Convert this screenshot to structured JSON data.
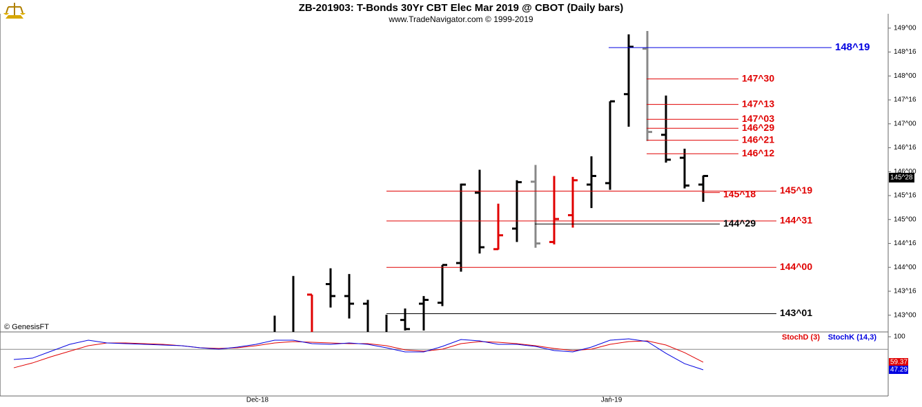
{
  "header": {
    "title": "ZB-201903:  T-Bonds 30Yr CBT Elec Mar 2019 @ CBOT  (Daily bars)",
    "subtitle": "www.TradeNavigator.com © 1999-2019"
  },
  "chart_data": [
    {
      "type": "ohlc",
      "categories": [
        null,
        null,
        null,
        null,
        null,
        null,
        null,
        null,
        null,
        null,
        null,
        null,
        null,
        "Dec-18",
        null,
        null,
        null,
        null,
        null,
        null,
        null,
        null,
        null,
        null,
        null,
        null,
        null,
        null,
        null,
        null,
        null,
        null,
        "Jan-19",
        null,
        null,
        null,
        null,
        null
      ],
      "open": [
        null,
        null,
        null,
        null,
        null,
        null,
        null,
        null,
        null,
        null,
        null,
        null,
        null,
        null,
        null,
        null,
        143.43,
        143.65,
        143.4,
        143.24,
        null,
        142.9,
        143.24,
        143.26,
        144.09,
        145.56,
        144.38,
        144.81,
        145.79,
        144.53,
        145.09,
        145.73,
        145.76,
        147.62,
        148.57,
        146.77,
        146.29,
        145.73
      ],
      "high": [
        null,
        null,
        null,
        null,
        null,
        null,
        null,
        null,
        null,
        null,
        null,
        null,
        null,
        null,
        142.99,
        143.82,
        143.43,
        143.98,
        143.86,
        143.32,
        143.01,
        143.14,
        143.4,
        144.05,
        145.75,
        146.04,
        145.33,
        145.82,
        146.14,
        145.91,
        145.89,
        146.32,
        147.47,
        148.87,
        148.94,
        147.59,
        146.48,
        145.92
      ],
      "low": [
        null,
        null,
        null,
        null,
        null,
        null,
        null,
        null,
        null,
        null,
        null,
        null,
        null,
        null,
        142.6,
        142.6,
        142.6,
        143.16,
        142.93,
        142.6,
        142.6,
        142.68,
        142.68,
        143.19,
        143.91,
        144.29,
        144.37,
        144.53,
        144.41,
        144.48,
        144.83,
        145.24,
        145.62,
        146.94,
        146.64,
        146.19,
        145.65,
        145.37
      ],
      "close": [
        null,
        null,
        null,
        null,
        null,
        null,
        null,
        null,
        null,
        null,
        null,
        null,
        null,
        null,
        null,
        null,
        null,
        143.4,
        143.24,
        null,
        null,
        142.71,
        143.32,
        144.05,
        145.73,
        144.42,
        144.67,
        145.78,
        144.5,
        145.01,
        145.82,
        145.91,
        147.47,
        148.61,
        146.83,
        146.25,
        145.71,
        145.91
      ],
      "colors": [
        null,
        null,
        null,
        null,
        null,
        null,
        null,
        null,
        null,
        null,
        null,
        null,
        null,
        null,
        "#000000",
        "#000000",
        "#e00000",
        "#000000",
        "#000000",
        "#000000",
        "#000000",
        "#000000",
        "#000000",
        "#000000",
        "#000000",
        "#000000",
        "#e00000",
        "#000000",
        "#888888",
        "#e00000",
        "#e00000",
        "#000000",
        "#000000",
        "#000000",
        "#888888",
        "#000000",
        "#000000",
        "#000000"
      ],
      "ylim": [
        142.65,
        149.3
      ],
      "yticks": [
        {
          "value": 143,
          "label": "143^00"
        },
        {
          "value": 143.5,
          "label": "143^16"
        },
        {
          "value": 144,
          "label": "144^00"
        },
        {
          "value": 144.5,
          "label": "144^16"
        },
        {
          "value": 145,
          "label": "145^00"
        },
        {
          "value": 145.5,
          "label": "145^16"
        },
        {
          "value": 146,
          "label": "146^00"
        },
        {
          "value": 146.5,
          "label": "146^16"
        },
        {
          "value": 147,
          "label": "147^00"
        },
        {
          "value": 147.5,
          "label": "147^16"
        },
        {
          "value": 148,
          "label": "148^00"
        },
        {
          "value": 148.5,
          "label": "148^16"
        },
        {
          "value": 149,
          "label": "149^00"
        }
      ],
      "levels": [
        {
          "value": 148.59375,
          "label": "148^19",
          "color": "#0000e0"
        },
        {
          "value": 147.9375,
          "label": "147^30",
          "color": "#e00000"
        },
        {
          "value": 147.40625,
          "label": "147^13",
          "color": "#e00000"
        },
        {
          "value": 147.09375,
          "label": "147^03",
          "color": "#e00000"
        },
        {
          "value": 146.90625,
          "label": "146^29",
          "color": "#e00000"
        },
        {
          "value": 146.65625,
          "label": "146^21",
          "color": "#e00000"
        },
        {
          "value": 146.375,
          "label": "146^12",
          "color": "#e00000"
        },
        {
          "value": 145.5625,
          "label": "145^18",
          "color": "#e00000"
        },
        {
          "value": 145.59375,
          "label": "145^19",
          "color": "#e00000"
        },
        {
          "value": 144.96875,
          "label": "144^31",
          "color": "#e00000"
        },
        {
          "value": 144.90625,
          "label": "144^29",
          "color": "#000000"
        },
        {
          "value": 144.0,
          "label": "144^00",
          "color": "#e00000"
        },
        {
          "value": 143.03125,
          "label": "143^01",
          "color": "#000000"
        }
      ],
      "last_price": {
        "value": 145.875,
        "label": "145^28"
      },
      "watermark": "© GenesisFT"
    },
    {
      "type": "line",
      "series": [
        {
          "name": "StochD (3)",
          "color": "#e00000",
          "values": [
            50.5,
            58.2,
            68.1,
            76.9,
            85.7,
            90.1,
            90.1,
            89.0,
            87.9,
            85.7,
            82.4,
            81.3,
            82.4,
            85.7,
            90.1,
            92.3,
            91.2,
            90.1,
            89.0,
            89.0,
            85.7,
            79.1,
            76.9,
            80.2,
            89.0,
            92.3,
            91.2,
            89.0,
            85.7,
            81.3,
            78.0,
            80.2,
            87.9,
            92.3,
            93.4,
            86.8,
            74.7,
            59.37
          ],
          "value_labels": [
            null,
            null,
            null,
            null,
            null,
            null,
            null,
            null,
            null,
            null,
            null,
            null,
            null,
            null,
            null,
            null,
            null,
            null,
            null,
            null,
            null,
            null,
            null,
            null,
            null,
            null,
            null,
            null,
            null,
            null,
            null,
            null,
            null,
            null,
            null,
            null,
            null,
            "59.37"
          ]
        },
        {
          "name": "StochK (14,3)",
          "color": "#0000e0",
          "values": [
            63.7,
            65.9,
            76.9,
            87.9,
            94.5,
            90.1,
            89.0,
            87.9,
            86.8,
            85.7,
            82.4,
            80.2,
            83.5,
            87.9,
            94.5,
            94.5,
            89.0,
            87.9,
            90.1,
            87.9,
            82.4,
            75.8,
            75.8,
            84.6,
            95.6,
            93.4,
            87.9,
            87.9,
            84.6,
            78.0,
            75.8,
            83.5,
            94.5,
            96.7,
            92.3,
            73.6,
            57.1,
            47.29
          ],
          "value_labels": [
            null,
            null,
            null,
            null,
            null,
            null,
            null,
            null,
            null,
            null,
            null,
            null,
            null,
            null,
            null,
            null,
            null,
            null,
            null,
            null,
            null,
            null,
            null,
            null,
            null,
            null,
            null,
            null,
            null,
            null,
            null,
            null,
            null,
            null,
            null,
            null,
            null,
            "47.29"
          ]
        }
      ],
      "ylim": [
        5.5,
        107.7
      ],
      "yticks": [
        100
      ],
      "hlines": [
        80
      ]
    }
  ]
}
